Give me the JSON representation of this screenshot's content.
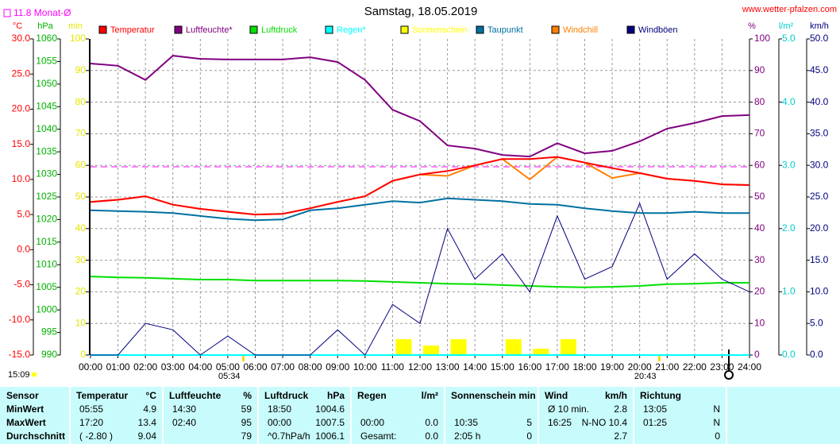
{
  "chart_data": {
    "type": "line",
    "title": "Samstag, 18.05.2019",
    "source": "www.wetter-pfalzen.com",
    "monthly_mean": {
      "value": 11.8,
      "label": "11.8 Monat-Ø",
      "color": "#ff00ff",
      "axis": 0
    },
    "timestamp": "15:09",
    "sunrise": "05:34",
    "sunset": "20:43",
    "categories": [
      "00:00",
      "01:00",
      "02:00",
      "03:00",
      "04:00",
      "05:00",
      "06:00",
      "07:00",
      "08:00",
      "09:00",
      "10:00",
      "11:00",
      "12:00",
      "13:00",
      "14:00",
      "15:00",
      "16:00",
      "17:00",
      "18:00",
      "19:00",
      "20:00",
      "21:00",
      "22:00",
      "23:00",
      "24:00"
    ],
    "grid": true,
    "axes": [
      {
        "unit": "°C",
        "color": "#ff0000",
        "side": "left",
        "lim": [
          -15,
          30
        ],
        "ticks": [
          {
            "value": -15,
            "label": "-15.0"
          },
          {
            "value": -10,
            "label": "-10.0"
          },
          {
            "value": -5,
            "label": "-5.0"
          },
          {
            "value": 0,
            "label": "0.0"
          },
          {
            "value": 5,
            "label": "5.0"
          },
          {
            "value": 10,
            "label": "10.0"
          },
          {
            "value": 15,
            "label": "15.0"
          },
          {
            "value": 20,
            "label": "20.0"
          },
          {
            "value": 25,
            "label": "25.0"
          },
          {
            "value": 30,
            "label": "30.0"
          }
        ]
      },
      {
        "unit": "hPa",
        "color": "#00b000",
        "side": "left",
        "lim": [
          990,
          1060
        ],
        "ticks": [
          990,
          995,
          1000,
          1005,
          1010,
          1015,
          1020,
          1025,
          1030,
          1035,
          1040,
          1045,
          1050,
          1055,
          1060
        ]
      },
      {
        "unit": "min",
        "color": "#e6e600",
        "side": "left",
        "lim": [
          0,
          100
        ],
        "ticks": [
          0,
          10,
          20,
          30,
          40,
          50,
          60,
          70,
          80,
          90,
          100
        ]
      },
      {
        "unit": "%",
        "color": "#800080",
        "side": "right",
        "lim": [
          0,
          100
        ],
        "ticks": [
          0,
          10,
          20,
          30,
          40,
          50,
          60,
          70,
          80,
          90,
          100
        ]
      },
      {
        "unit": "l/m²",
        "color": "#00cccc",
        "side": "right",
        "lim": [
          0,
          5
        ],
        "ticks": [
          {
            "value": 0,
            "label": "0.0"
          },
          {
            "value": 1,
            "label": "1.0"
          },
          {
            "value": 2,
            "label": "2.0"
          },
          {
            "value": 3,
            "label": "3.0"
          },
          {
            "value": 4,
            "label": "4.0"
          },
          {
            "value": 5,
            "label": "5.0"
          }
        ]
      },
      {
        "unit": "km/h",
        "color": "#000080",
        "side": "right",
        "lim": [
          0,
          50
        ],
        "ticks": [
          {
            "value": 0,
            "label": "0.0"
          },
          {
            "value": 5,
            "label": "5.0"
          },
          {
            "value": 10,
            "label": "10.0"
          },
          {
            "value": 15,
            "label": "15.0"
          },
          {
            "value": 20,
            "label": "20.0"
          },
          {
            "value": 25,
            "label": "25.0"
          },
          {
            "value": 30,
            "label": "30.0"
          },
          {
            "value": 35,
            "label": "35.0"
          },
          {
            "value": 40,
            "label": "40.0"
          },
          {
            "value": 45,
            "label": "45.0"
          },
          {
            "value": 50,
            "label": "50.0"
          }
        ]
      }
    ],
    "series": [
      {
        "name": "Temperatur",
        "color": "#ff0000",
        "axis": 0,
        "values": [
          6.8,
          7.1,
          7.6,
          6.4,
          5.8,
          5.4,
          5.0,
          5.1,
          5.9,
          6.8,
          7.6,
          9.8,
          10.7,
          11.2,
          12.0,
          12.9,
          12.9,
          13.2,
          12.4,
          11.6,
          10.9,
          10.1,
          9.8,
          9.3,
          9.2
        ]
      },
      {
        "name": "Luftfeuchte*",
        "color": "#800080",
        "axis": 3,
        "values": [
          92.2,
          91.5,
          87.0,
          94.7,
          93.7,
          93.5,
          93.5,
          93.5,
          94.2,
          92.7,
          87.0,
          77.6,
          74.0,
          66.3,
          65.3,
          63.3,
          62.8,
          67.0,
          63.8,
          64.6,
          67.6,
          71.6,
          73.4,
          75.6,
          75.9
        ]
      },
      {
        "name": "Luftdruck",
        "color": "#00e000",
        "axis": 1,
        "values": [
          1007.4,
          1007.2,
          1007.1,
          1006.9,
          1006.7,
          1006.7,
          1006.5,
          1006.5,
          1006.5,
          1006.5,
          1006.4,
          1006.2,
          1006.0,
          1005.8,
          1005.7,
          1005.5,
          1005.3,
          1005.1,
          1005.0,
          1005.1,
          1005.3,
          1005.7,
          1005.8,
          1006.0,
          1006.0
        ]
      },
      {
        "name": "Regen*",
        "color": "#00ffff",
        "axis": 4,
        "values": [
          0,
          0,
          0,
          0,
          0,
          0,
          0,
          0,
          0,
          0,
          0,
          0,
          0,
          0,
          0,
          0,
          0,
          0,
          0,
          0,
          0,
          0,
          0,
          0,
          0
        ]
      },
      {
        "name": "Sonnenschein",
        "color": "#ffff00",
        "axis": 2,
        "style": "bar",
        "values": [
          0,
          0,
          0,
          0,
          0,
          0,
          0,
          0,
          0,
          0,
          0,
          5,
          3,
          5,
          0,
          5,
          2,
          5,
          0,
          0,
          0,
          0,
          0,
          0,
          0
        ]
      },
      {
        "name": "Taupunkt",
        "color": "#0070a0",
        "axis": 0,
        "values": [
          5.6,
          5.5,
          5.4,
          5.2,
          4.8,
          4.4,
          4.2,
          4.3,
          5.6,
          5.9,
          6.4,
          6.9,
          6.7,
          7.3,
          7.1,
          6.9,
          6.5,
          6.4,
          5.9,
          5.5,
          5.2,
          5.2,
          5.4,
          5.2,
          5.2
        ]
      },
      {
        "name": "Windchill",
        "color": "#ff8000",
        "axis": 0,
        "values": [
          6.8,
          7.1,
          7.6,
          6.4,
          5.8,
          5.4,
          5.0,
          5.1,
          5.9,
          6.8,
          7.6,
          9.8,
          10.7,
          10.5,
          12.0,
          12.9,
          10.0,
          13.2,
          12.4,
          10.2,
          10.9,
          10.1,
          9.8,
          9.3,
          9.2
        ]
      },
      {
        "name": "Windböen",
        "color": "#000080",
        "axis": 5,
        "values": [
          0,
          0,
          5,
          4,
          0,
          3,
          0,
          0,
          0,
          4,
          0,
          8,
          5,
          20,
          12,
          16,
          10,
          22,
          12,
          14,
          24,
          12,
          16,
          12,
          10
        ]
      }
    ]
  },
  "table": {
    "header": [
      {
        "label": "Sensor"
      },
      {
        "label": "Temperatur",
        "unit": "°C"
      },
      {
        "label": "Luftfeuchte",
        "unit": "%"
      },
      {
        "label": "Luftdruck",
        "unit": "hPa"
      },
      {
        "label": "Regen",
        "unit": "l/m²"
      },
      {
        "label": "Sonnenschein min"
      },
      {
        "label": "Wind",
        "unit": "km/h"
      },
      {
        "label": "Richtung"
      }
    ],
    "rows": [
      {
        "label": "MinWert",
        "cells": [
          {
            "time": "05:55",
            "value": "4.9"
          },
          {
            "time": "14:30",
            "value": "59"
          },
          {
            "time": "18:50",
            "value": "1004.6"
          },
          {},
          {},
          {
            "time": "Ø 10 min.",
            "value": "2.8"
          },
          {
            "time": "13:05",
            "value": "N"
          }
        ]
      },
      {
        "label": "MaxWert",
        "cells": [
          {
            "time": "17:20",
            "value": "13.4"
          },
          {
            "time": "02:40",
            "value": "95"
          },
          {
            "time": "00:00",
            "value": "1007.5"
          },
          {
            "time": "00:00",
            "value": "0.0"
          },
          {
            "time": "10:35",
            "value": "5"
          },
          {
            "time": "16:25",
            "value": "N-NO 10.4"
          },
          {
            "time": "01:25",
            "value": "N"
          }
        ]
      },
      {
        "label": "Durchschnitt",
        "cells": [
          {
            "time": "( -2.80 )",
            "value": "9.04"
          },
          {
            "value": "79"
          },
          {
            "time": "^0.7hPa/h",
            "value": "1006.1"
          },
          {
            "time": "Gesamt:",
            "value": "0.0"
          },
          {
            "time": "2:05 h",
            "value": "0"
          },
          {
            "value": "2.7"
          },
          {
            "value": "0"
          }
        ]
      }
    ]
  }
}
